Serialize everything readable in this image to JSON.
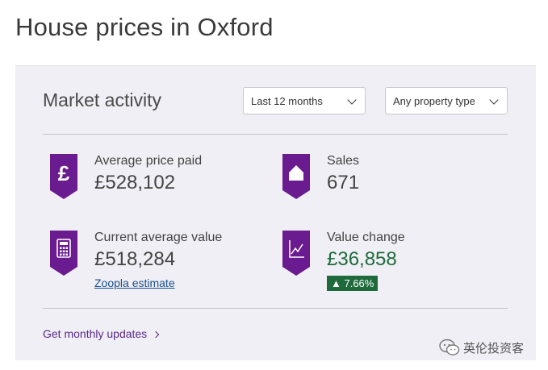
{
  "page": {
    "title": "House prices in Oxford"
  },
  "market": {
    "title": "Market activity",
    "period_select": {
      "value": "Last 12 months"
    },
    "type_select": {
      "value": "Any property type"
    }
  },
  "stats": {
    "average_price": {
      "label": "Average price paid",
      "value": "£528,102",
      "icon": "pound-icon"
    },
    "sales": {
      "label": "Sales",
      "value": "671",
      "icon": "house-icon"
    },
    "current_value": {
      "label": "Current average value",
      "value": "£518,284",
      "link": "Zoopla estimate",
      "icon": "calculator-icon"
    },
    "value_change": {
      "label": "Value change",
      "value": "£36,858",
      "badge": "▲ 7.66%",
      "icon": "chart-icon"
    }
  },
  "footer": {
    "monthly_updates": "Get monthly updates"
  },
  "watermark": {
    "text": "英伦投资客"
  },
  "colors": {
    "accent": "#6a1b8f",
    "positive": "#1f6a3a",
    "panel_bg": "#efeff5"
  }
}
